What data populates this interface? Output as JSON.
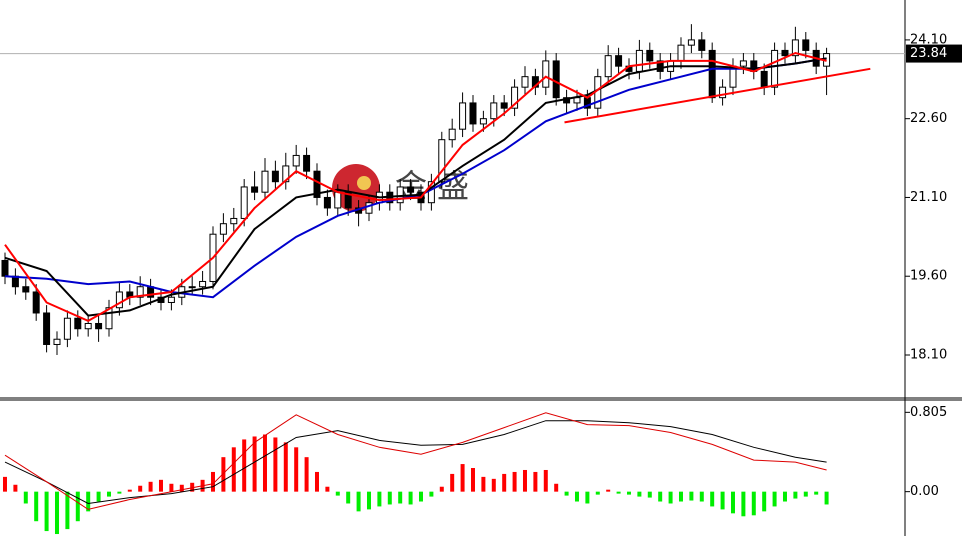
{
  "chart_data": [
    {
      "type": "candlestick",
      "watermark": "金盛",
      "xlim": [
        -0.48,
        86.54
      ],
      "ylim": [
        17.3,
        24.86
      ],
      "yticks": [
        {
          "value": 18.1,
          "label": "18.10"
        },
        {
          "value": 19.6,
          "label": "19.60"
        },
        {
          "value": 21.1,
          "label": "21.10"
        },
        {
          "value": 22.6,
          "label": "22.60"
        },
        {
          "value": 24.1,
          "label": "24.10"
        }
      ],
      "current_price": 23.84,
      "up_color": "#ffffff",
      "down_color": "#000000",
      "open": [
        19.9,
        19.6,
        19.4,
        19.3,
        18.9,
        18.3,
        18.4,
        18.8,
        18.6,
        18.7,
        18.6,
        19.0,
        19.3,
        19.2,
        19.4,
        19.2,
        19.1,
        19.2,
        19.4,
        19.4,
        19.5,
        20.4,
        20.6,
        20.7,
        21.3,
        21.2,
        21.6,
        21.4,
        21.7,
        21.9,
        21.6,
        21.1,
        20.9,
        21.2,
        20.9,
        20.8,
        21.0,
        21.2,
        21.0,
        21.3,
        21.2,
        21.0,
        21.4,
        22.2,
        22.4,
        22.9,
        22.5,
        22.6,
        22.9,
        22.8,
        23.2,
        23.4,
        23.2,
        23.7,
        23.0,
        22.9,
        23.0,
        22.8,
        23.4,
        23.8,
        23.6,
        23.5,
        23.9,
        23.7,
        23.5,
        23.7,
        24.0,
        24.1,
        23.9,
        23.0,
        23.2,
        23.6,
        23.7,
        23.5,
        23.2,
        23.9,
        23.8,
        24.1,
        23.9,
        23.6
      ],
      "high": [
        20.05,
        19.75,
        19.55,
        19.45,
        19.05,
        18.55,
        18.95,
        18.95,
        18.85,
        18.85,
        19.15,
        19.5,
        19.45,
        19.6,
        19.55,
        19.35,
        19.35,
        19.55,
        19.6,
        19.7,
        20.55,
        20.8,
        20.9,
        21.45,
        21.6,
        21.85,
        21.8,
        21.95,
        22.1,
        22.05,
        21.75,
        21.25,
        21.35,
        21.35,
        21.05,
        21.15,
        21.35,
        21.35,
        21.45,
        21.45,
        21.35,
        21.55,
        22.35,
        22.6,
        23.1,
        23.05,
        22.75,
        23.05,
        23.05,
        23.35,
        23.6,
        23.55,
        23.9,
        23.85,
        23.15,
        23.15,
        23.15,
        23.55,
        24.0,
        23.95,
        23.75,
        24.1,
        24.05,
        23.85,
        23.85,
        24.15,
        24.4,
        24.25,
        24.05,
        23.35,
        23.75,
        23.85,
        23.85,
        23.65,
        24.05,
        24.05,
        24.35,
        24.25,
        24.05,
        23.95
      ],
      "low": [
        19.45,
        19.25,
        19.15,
        18.75,
        18.15,
        18.1,
        18.25,
        18.45,
        18.45,
        18.35,
        18.45,
        18.85,
        19.05,
        19.05,
        19.05,
        18.95,
        18.95,
        19.05,
        19.25,
        19.25,
        19.35,
        20.25,
        20.45,
        20.55,
        21.05,
        21.05,
        21.25,
        21.25,
        21.55,
        21.45,
        20.95,
        20.75,
        20.75,
        20.75,
        20.55,
        20.65,
        20.85,
        20.85,
        20.85,
        21.05,
        20.85,
        20.85,
        21.25,
        22.05,
        22.25,
        22.35,
        22.35,
        22.45,
        22.65,
        22.65,
        23.05,
        23.05,
        23.05,
        22.85,
        22.7,
        22.75,
        22.65,
        22.65,
        23.25,
        23.45,
        23.35,
        23.35,
        23.55,
        23.35,
        23.35,
        23.55,
        23.85,
        23.75,
        22.9,
        22.85,
        23.05,
        23.45,
        23.35,
        23.05,
        23.05,
        23.65,
        23.65,
        23.75,
        23.45,
        23.05
      ],
      "close": [
        19.6,
        19.4,
        19.3,
        18.9,
        18.3,
        18.4,
        18.8,
        18.6,
        18.7,
        18.6,
        19.0,
        19.3,
        19.2,
        19.4,
        19.2,
        19.1,
        19.2,
        19.4,
        19.4,
        19.5,
        20.4,
        20.6,
        20.7,
        21.3,
        21.2,
        21.6,
        21.4,
        21.7,
        21.9,
        21.6,
        21.1,
        20.9,
        21.2,
        20.9,
        20.8,
        21.0,
        21.2,
        21.0,
        21.3,
        21.2,
        21.0,
        21.4,
        22.2,
        22.4,
        22.9,
        22.5,
        22.6,
        22.9,
        22.8,
        23.2,
        23.4,
        23.2,
        23.7,
        23.0,
        22.9,
        23.0,
        22.8,
        23.4,
        23.8,
        23.6,
        23.5,
        23.9,
        23.7,
        23.5,
        23.7,
        24.0,
        24.1,
        23.9,
        23.0,
        23.2,
        23.6,
        23.7,
        23.5,
        23.2,
        23.9,
        23.8,
        24.1,
        23.9,
        23.6,
        23.84
      ],
      "lines": [
        {
          "color": "#0000cc",
          "x": [
            0,
            4,
            8,
            12,
            16,
            20,
            24,
            28,
            32,
            36,
            40,
            44,
            48,
            52,
            56,
            60,
            64,
            68,
            72,
            76,
            79
          ],
          "values": [
            19.6,
            19.55,
            19.45,
            19.5,
            19.3,
            19.2,
            19.8,
            20.35,
            20.75,
            21.0,
            21.15,
            21.55,
            22.0,
            22.55,
            22.85,
            23.15,
            23.35,
            23.55,
            23.55,
            23.65,
            23.75
          ]
        },
        {
          "color": "#000000",
          "x": [
            0,
            4,
            8,
            12,
            16,
            20,
            24,
            28,
            32,
            36,
            40,
            44,
            48,
            52,
            56,
            60,
            64,
            68,
            72,
            76,
            79
          ],
          "values": [
            19.95,
            19.7,
            18.85,
            18.95,
            19.25,
            19.4,
            20.5,
            21.1,
            21.25,
            21.1,
            21.15,
            21.7,
            22.2,
            22.9,
            23.05,
            23.45,
            23.6,
            23.6,
            23.55,
            23.65,
            23.75
          ]
        },
        {
          "color": "#ff0000",
          "x": [
            0,
            4,
            8,
            12,
            16,
            20,
            24,
            28,
            32,
            36,
            40,
            44,
            48,
            52,
            56,
            60,
            64,
            68,
            72,
            76,
            79
          ],
          "values": [
            20.2,
            19.1,
            18.75,
            19.2,
            19.3,
            19.95,
            20.9,
            21.6,
            21.2,
            21.05,
            21.1,
            22.1,
            22.7,
            23.4,
            23.0,
            23.6,
            23.7,
            23.7,
            23.5,
            23.85,
            23.7
          ]
        }
      ],
      "trendline": {
        "color": "#ff0000",
        "x": [
          53.8,
          83.2
        ],
        "values": [
          22.53,
          23.55
        ]
      }
    },
    {
      "type": "macd",
      "xlim": [
        -0.48,
        86.54
      ],
      "ylim": [
        -0.45,
        0.92
      ],
      "yticks": [
        0.805,
        {
          "value": 0,
          "label": "0.00"
        }
      ],
      "up_color": "#ff0000",
      "down_color": "#00ee00",
      "values": [
        0.15,
        0.07,
        -0.12,
        -0.3,
        -0.4,
        -0.43,
        -0.38,
        -0.3,
        -0.2,
        -0.1,
        -0.05,
        -0.02,
        0.02,
        0.06,
        0.1,
        0.12,
        0.08,
        0.07,
        0.09,
        0.12,
        0.2,
        0.35,
        0.45,
        0.53,
        0.56,
        0.58,
        0.55,
        0.5,
        0.45,
        0.35,
        0.2,
        0.05,
        -0.04,
        -0.12,
        -0.2,
        -0.18,
        -0.15,
        -0.13,
        -0.12,
        -0.13,
        -0.1,
        -0.05,
        0.05,
        0.18,
        0.28,
        0.24,
        0.15,
        0.13,
        0.18,
        0.2,
        0.22,
        0.2,
        0.22,
        0.08,
        -0.04,
        -0.1,
        -0.12,
        -0.03,
        0.02,
        -0.02,
        -0.03,
        -0.05,
        -0.06,
        -0.1,
        -0.12,
        -0.1,
        -0.09,
        -0.1,
        -0.15,
        -0.18,
        -0.22,
        -0.25,
        -0.24,
        -0.2,
        -0.15,
        -0.1,
        -0.07,
        -0.05,
        -0.03,
        -0.13
      ],
      "lines": [
        {
          "color": "#000000",
          "x": [
            0,
            4,
            8,
            12,
            16,
            20,
            24,
            28,
            32,
            36,
            40,
            44,
            48,
            52,
            56,
            60,
            64,
            68,
            72,
            76,
            79
          ],
          "values": [
            0.3,
            0.1,
            -0.12,
            -0.06,
            -0.02,
            0.05,
            0.3,
            0.55,
            0.62,
            0.52,
            0.47,
            0.48,
            0.58,
            0.72,
            0.72,
            0.7,
            0.66,
            0.58,
            0.45,
            0.35,
            0.3
          ]
        },
        {
          "color": "#dd0000",
          "x": [
            0,
            4,
            8,
            12,
            16,
            20,
            24,
            28,
            32,
            36,
            40,
            44,
            48,
            52,
            56,
            60,
            64,
            68,
            72,
            76,
            79
          ],
          "values": [
            0.37,
            0.1,
            -0.18,
            -0.08,
            0.0,
            0.08,
            0.5,
            0.78,
            0.58,
            0.45,
            0.38,
            0.5,
            0.65,
            0.8,
            0.68,
            0.67,
            0.6,
            0.48,
            0.32,
            0.3,
            0.22
          ]
        }
      ]
    }
  ]
}
